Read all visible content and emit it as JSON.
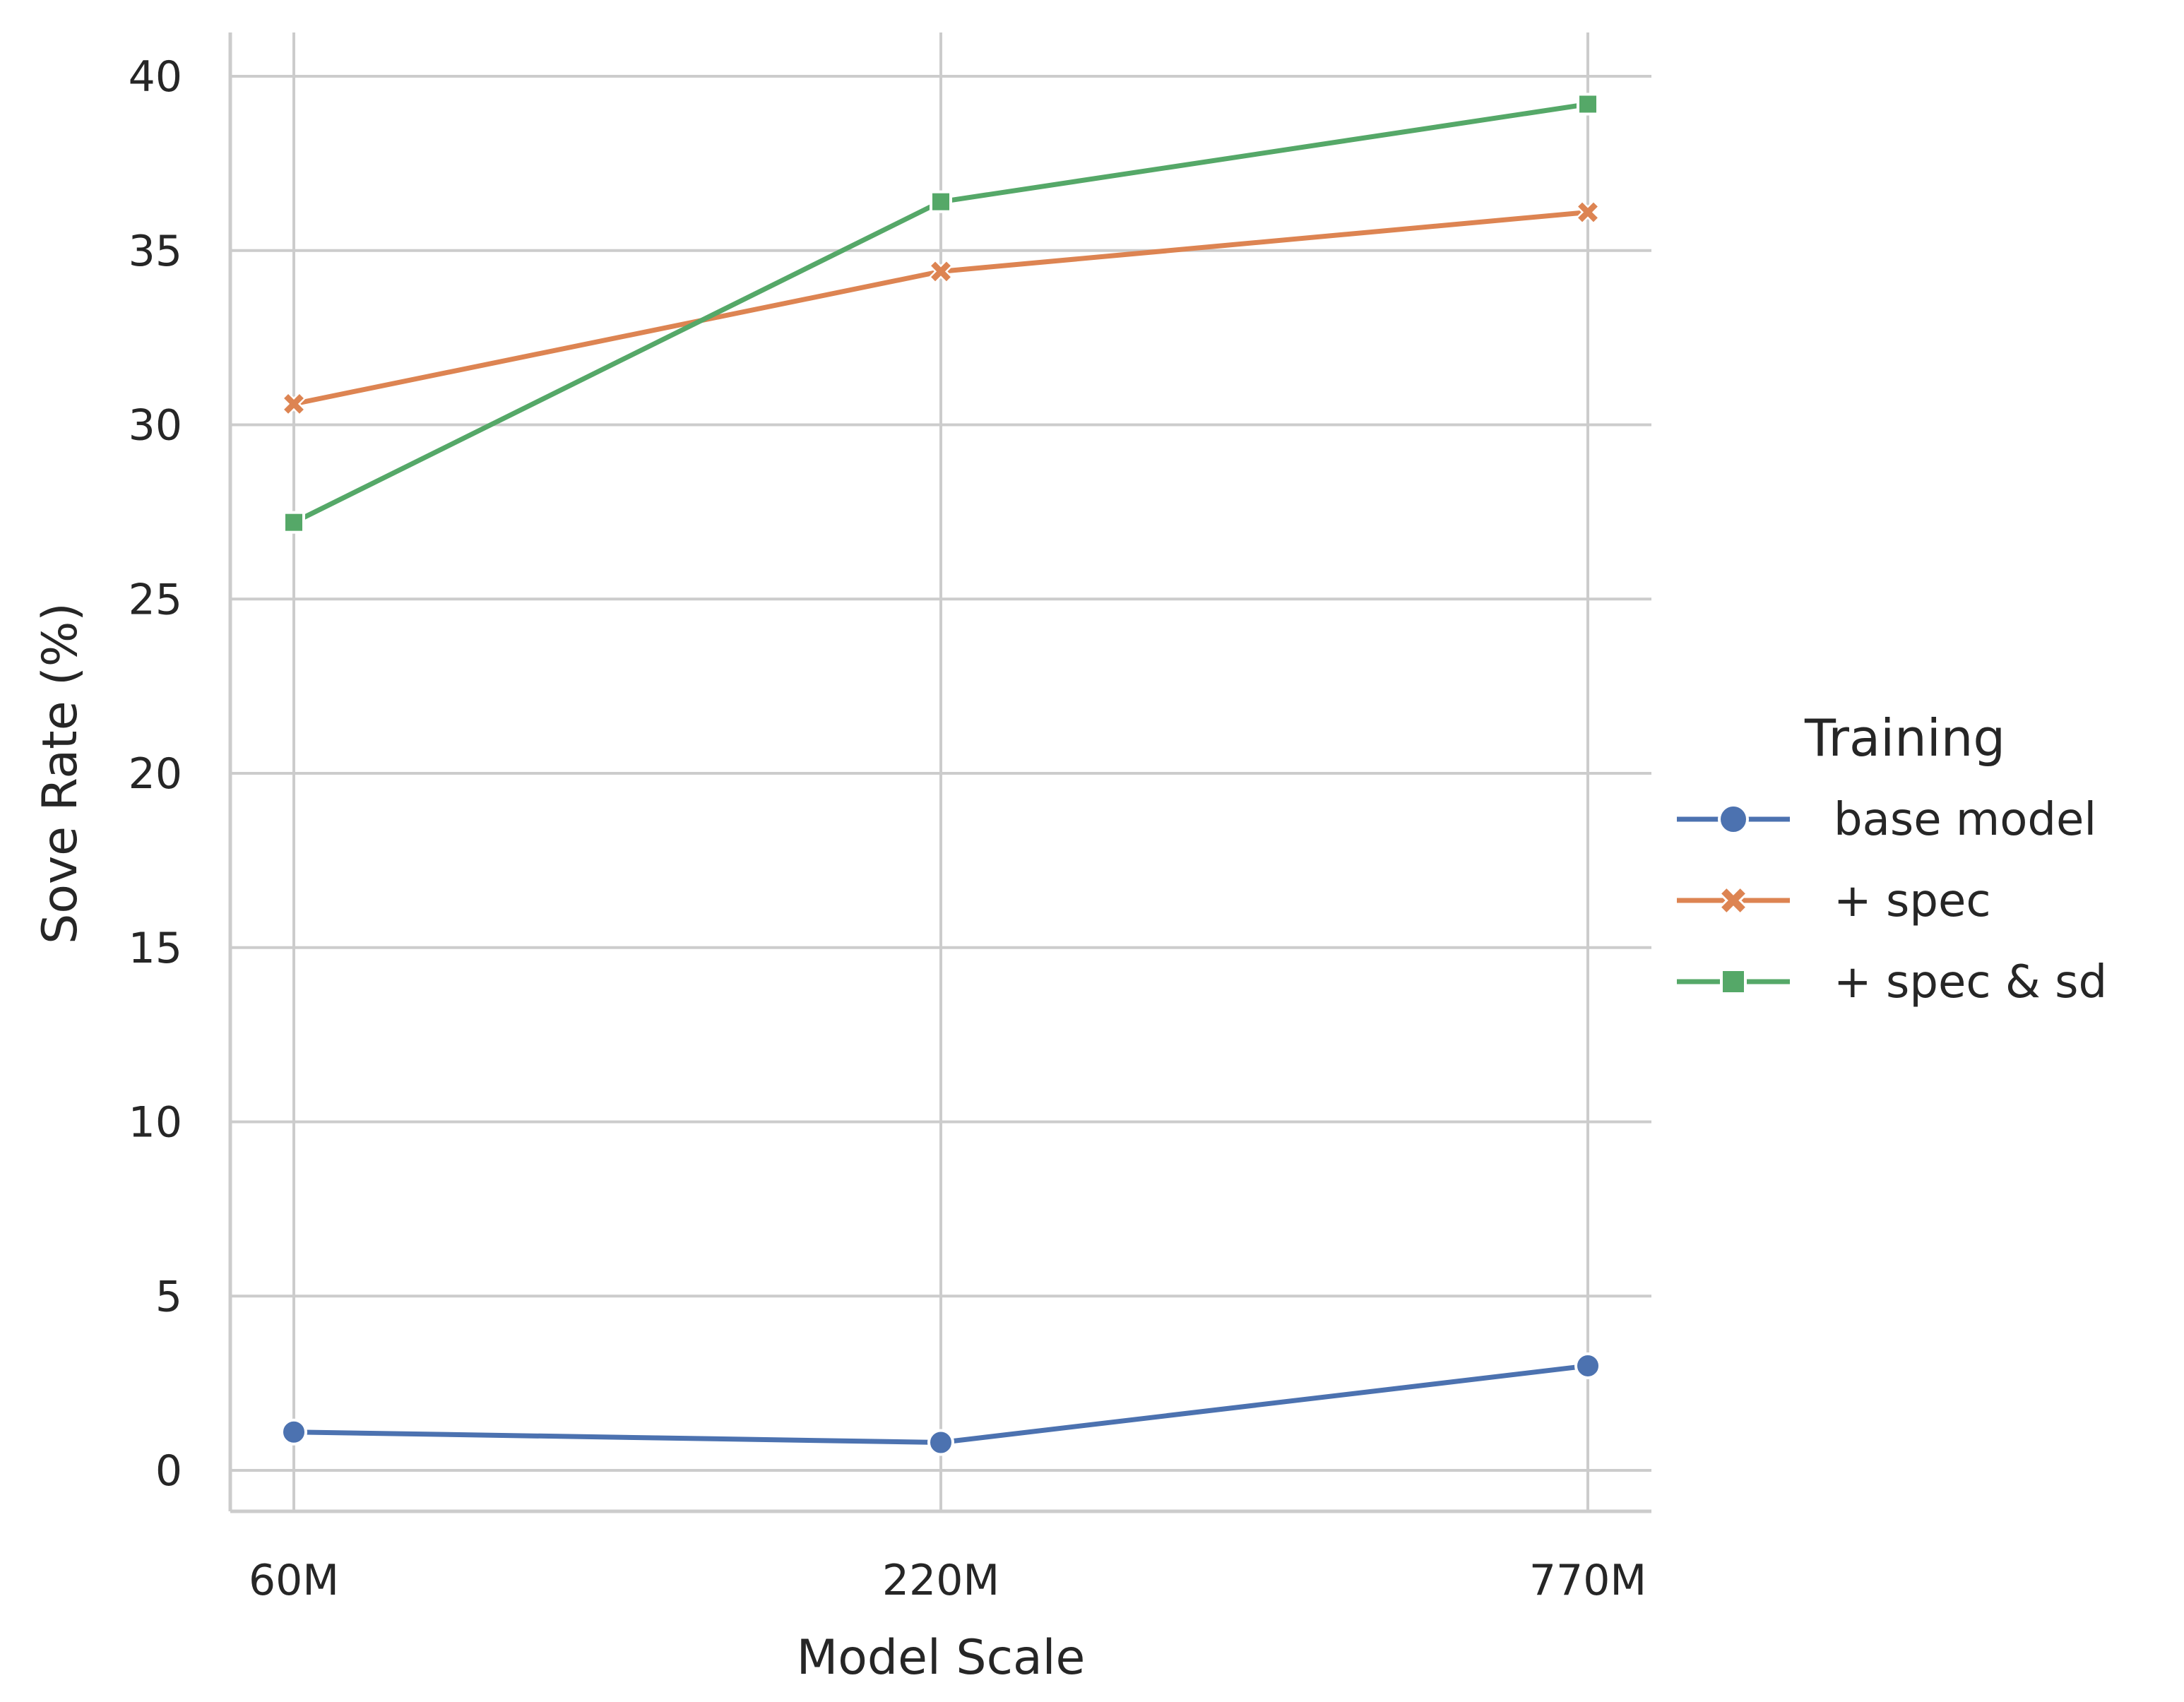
{
  "chart_data": {
    "type": "line",
    "title": "",
    "xlabel": "Model Scale",
    "ylabel": "Sove Rate (%)",
    "categories": [
      "60M",
      "220M",
      "770M"
    ],
    "ylim": [
      -1.2,
      41.3
    ],
    "yticks": [
      0,
      5,
      10,
      15,
      20,
      25,
      30,
      35,
      40
    ],
    "grid": true,
    "legend": {
      "title": "Training",
      "placement": "right"
    },
    "series": [
      {
        "name": "base model",
        "values": [
          1.1,
          0.8,
          3.0
        ],
        "color": "#4c72b0",
        "marker": "circle"
      },
      {
        "name": "+ spec",
        "values": [
          30.6,
          34.4,
          36.1
        ],
        "color": "#dd8452",
        "marker": "x"
      },
      {
        "name": "+ spec & sd",
        "values": [
          27.2,
          36.4,
          39.2
        ],
        "color": "#55a868",
        "marker": "square"
      }
    ]
  }
}
